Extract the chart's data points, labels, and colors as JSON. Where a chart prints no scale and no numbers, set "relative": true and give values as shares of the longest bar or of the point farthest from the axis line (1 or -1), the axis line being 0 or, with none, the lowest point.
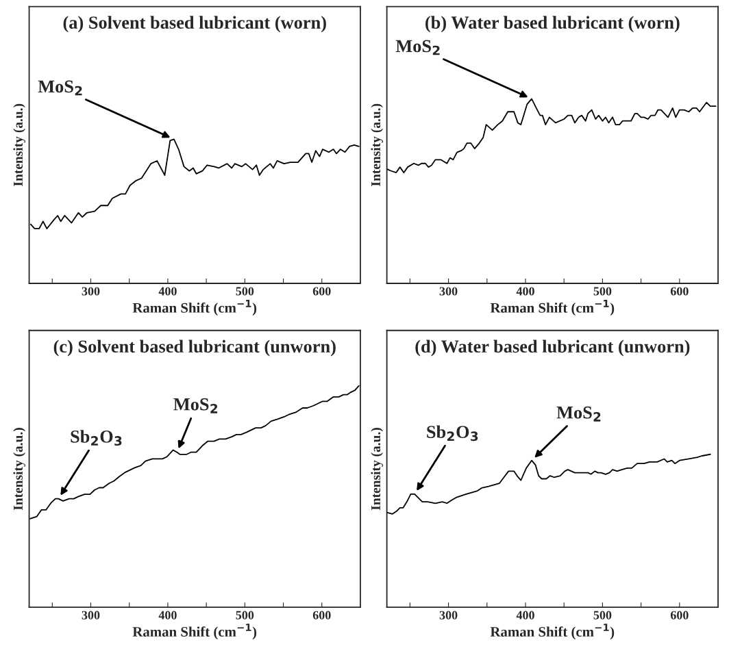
{
  "chart_data": [
    {
      "type": "line",
      "title": "(a) Solvent based lubricant (worn)",
      "xlabel": "Raman Shift (cm$^{−1}$)",
      "ylabel": "Intensity (a.u.)",
      "relative": true,
      "xlim": [
        220,
        650
      ],
      "xticks": [
        {
          "value": 250,
          "label": null
        },
        300,
        {
          "value": 350,
          "label": null
        },
        400,
        {
          "value": 450,
          "label": null
        },
        500,
        {
          "value": 550,
          "label": null
        },
        600
      ],
      "annotations": [
        {
          "text": "MoS$_{2}$",
          "x": 408,
          "y": 1
        }
      ],
      "series": [
        {
          "color": "#000000",
          "x": [
            222,
            227,
            233,
            238,
            243,
            252,
            257,
            261,
            266,
            275,
            284,
            289,
            295,
            305,
            313,
            322,
            328,
            339,
            345,
            351,
            358,
            366,
            372,
            378,
            386,
            396,
            403,
            408,
            414,
            421,
            428,
            433,
            437,
            445,
            451,
            460,
            466,
            477,
            483,
            487,
            496,
            501,
            510,
            515,
            519,
            524,
            533,
            537,
            542,
            551,
            559,
            569,
            579,
            583,
            587,
            592,
            597,
            601,
            609,
            615,
            619,
            624,
            630,
            636,
            642,
            648
          ],
          "values": [
            0.41,
            0.38,
            0.38,
            0.43,
            0.38,
            0.44,
            0.47,
            0.43,
            0.47,
            0.42,
            0.49,
            0.46,
            0.49,
            0.5,
            0.54,
            0.54,
            0.59,
            0.62,
            0.62,
            0.68,
            0.71,
            0.73,
            0.78,
            0.83,
            0.85,
            0.75,
            0.99,
            1,
            0.93,
            0.81,
            0.78,
            0.8,
            0.76,
            0.78,
            0.82,
            0.81,
            0.8,
            0.83,
            0.8,
            0.83,
            0.81,
            0.83,
            0.79,
            0.82,
            0.75,
            0.79,
            0.83,
            0.8,
            0.85,
            0.83,
            0.84,
            0.84,
            0.9,
            0.9,
            0.84,
            0.92,
            0.88,
            0.93,
            0.91,
            0.93,
            0.9,
            0.93,
            0.91,
            0.95,
            0.96,
            0.95
          ]
        }
      ]
    },
    {
      "type": "line",
      "title": "(b) Water based lubricant (worn)",
      "xlabel": "Raman Shift (cm$^{−1}$)",
      "ylabel": "Intensity (a.u.)",
      "relative": true,
      "xlim": [
        220,
        650
      ],
      "xticks": [
        {
          "value": 250,
          "label": null
        },
        300,
        {
          "value": 350,
          "label": null
        },
        400,
        {
          "value": 450,
          "label": null
        },
        500,
        {
          "value": 550,
          "label": null
        },
        600
      ],
      "annotations": [
        {
          "text": "MoS$_{2}$",
          "x": 408,
          "y": 1
        }
      ],
      "series": [
        {
          "color": "#000000",
          "x": [
            220,
            225,
            232,
            237,
            242,
            247,
            255,
            261,
            265,
            270,
            274,
            278,
            283,
            290,
            298,
            302,
            306,
            311,
            317,
            320,
            324,
            329,
            334,
            340,
            345,
            349,
            357,
            364,
            370,
            377,
            385,
            390,
            394,
            402,
            408,
            414,
            419,
            422,
            426,
            431,
            439,
            450,
            455,
            460,
            464,
            469,
            473,
            478,
            481,
            486,
            491,
            495,
            500,
            504,
            508,
            513,
            517,
            522,
            526,
            537,
            542,
            545,
            550,
            554,
            559,
            563,
            568,
            572,
            576,
            585,
            591,
            595,
            600,
            606,
            612,
            617,
            622,
            626,
            635,
            640,
            647
          ],
          "values": [
            0.62,
            0.61,
            0.6,
            0.63,
            0.6,
            0.63,
            0.65,
            0.64,
            0.65,
            0.65,
            0.63,
            0.64,
            0.67,
            0.67,
            0.65,
            0.68,
            0.67,
            0.71,
            0.72,
            0.73,
            0.76,
            0.76,
            0.73,
            0.76,
            0.79,
            0.86,
            0.83,
            0.86,
            0.88,
            0.93,
            0.93,
            0.87,
            0.86,
            0.97,
            1.0,
            0.95,
            0.91,
            0.91,
            0.86,
            0.9,
            0.87,
            0.89,
            0.91,
            0.91,
            0.87,
            0.9,
            0.91,
            0.88,
            0.92,
            0.94,
            0.89,
            0.91,
            0.88,
            0.9,
            0.87,
            0.9,
            0.86,
            0.86,
            0.88,
            0.88,
            0.92,
            0.92,
            0.9,
            0.9,
            0.89,
            0.91,
            0.91,
            0.94,
            0.94,
            0.9,
            0.95,
            0.9,
            0.94,
            0.94,
            0.93,
            0.95,
            0.95,
            0.93,
            0.98,
            0.96,
            0.96
          ]
        }
      ]
    },
    {
      "type": "line",
      "title": "(c) Solvent based lubricant (unworn)",
      "xlabel": "Raman Shift (cm$^{−1}$)",
      "ylabel": "Intensity (a.u.)",
      "relative": true,
      "xlim": [
        220,
        650
      ],
      "xticks": [
        {
          "value": 250,
          "label": null
        },
        300,
        {
          "value": 350,
          "label": null
        },
        400,
        {
          "value": 450,
          "label": null
        },
        500,
        {
          "value": 550,
          "label": null
        },
        600
      ],
      "annotations": [
        {
          "text": "Sb$_{2}$O$_{3}$",
          "x": 258,
          "y": 0.49
        },
        {
          "text": "MoS$_{2}$",
          "x": 412,
          "y": 0.7
        }
      ],
      "series": [
        {
          "color": "#000000",
          "x": [
            221,
            230,
            236,
            242,
            248,
            254,
            258,
            264,
            272,
            278,
            284,
            292,
            299,
            305,
            311,
            316,
            324,
            330,
            337,
            345,
            351,
            357,
            365,
            371,
            380,
            387,
            393,
            399,
            407,
            412,
            416,
            424,
            430,
            437,
            445,
            452,
            460,
            467,
            475,
            483,
            489,
            495,
            502,
            508,
            514,
            521,
            527,
            534,
            543,
            551,
            557,
            566,
            575,
            581,
            589,
            595,
            601,
            607,
            615,
            622,
            628,
            633,
            637,
            643,
            648
          ],
          "values": [
            0.4,
            0.41,
            0.44,
            0.44,
            0.47,
            0.49,
            0.49,
            0.48,
            0.49,
            0.49,
            0.5,
            0.51,
            0.51,
            0.53,
            0.54,
            0.54,
            0.56,
            0.57,
            0.59,
            0.61,
            0.62,
            0.63,
            0.64,
            0.66,
            0.67,
            0.67,
            0.67,
            0.68,
            0.71,
            0.7,
            0.69,
            0.69,
            0.7,
            0.7,
            0.73,
            0.75,
            0.75,
            0.76,
            0.76,
            0.77,
            0.78,
            0.78,
            0.79,
            0.8,
            0.81,
            0.81,
            0.82,
            0.84,
            0.85,
            0.86,
            0.87,
            0.88,
            0.9,
            0.9,
            0.91,
            0.92,
            0.93,
            0.93,
            0.95,
            0.95,
            0.96,
            0.96,
            0.97,
            0.98,
            1.0
          ]
        }
      ]
    },
    {
      "type": "line",
      "title": "(d) Water based lubricant (unworn)",
      "xlabel": "Raman Shift (cm$^{−1}$)",
      "ylabel": "Intensity (a.u.)",
      "relative": true,
      "xlim": [
        220,
        650
      ],
      "xticks": [
        {
          "value": 250,
          "label": null
        },
        300,
        {
          "value": 350,
          "label": null
        },
        400,
        {
          "value": 450,
          "label": null
        },
        500,
        {
          "value": 550,
          "label": null
        },
        600
      ],
      "annotations": [
        {
          "text": "Sb$_{2}$O$_{3}$",
          "x": 256,
          "y": 0.74
        },
        {
          "text": "MoS$_{2}$",
          "x": 408,
          "y": 0.96
        }
      ],
      "series": [
        {
          "color": "#000000",
          "x": [
            220,
            227,
            233,
            237,
            241,
            246,
            251,
            256,
            260,
            266,
            273,
            283,
            292,
            298,
            304,
            311,
            317,
            323,
            330,
            337,
            343,
            352,
            359,
            366,
            372,
            378,
            385,
            389,
            394,
            401,
            408,
            413,
            417,
            421,
            427,
            432,
            437,
            445,
            451,
            455,
            464,
            472,
            481,
            485,
            490,
            494,
            498,
            504,
            509,
            513,
            519,
            525,
            532,
            538,
            545,
            554,
            561,
            571,
            580,
            584,
            590,
            594,
            600,
            612,
            623,
            629,
            640
          ],
          "values": [
            0.62,
            0.61,
            0.63,
            0.65,
            0.65,
            0.69,
            0.74,
            0.74,
            0.72,
            0.69,
            0.69,
            0.68,
            0.69,
            0.68,
            0.7,
            0.72,
            0.73,
            0.74,
            0.75,
            0.76,
            0.78,
            0.79,
            0.8,
            0.81,
            0.85,
            0.89,
            0.89,
            0.86,
            0.83,
            0.91,
            0.96,
            0.93,
            0.86,
            0.84,
            0.84,
            0.86,
            0.85,
            0.86,
            0.89,
            0.9,
            0.88,
            0.88,
            0.88,
            0.87,
            0.89,
            0.88,
            0.88,
            0.87,
            0.88,
            0.9,
            0.89,
            0.9,
            0.91,
            0.91,
            0.94,
            0.94,
            0.95,
            0.95,
            0.97,
            0.95,
            0.96,
            0.94,
            0.96,
            0.97,
            0.98,
            0.99,
            1.0
          ]
        }
      ]
    }
  ]
}
